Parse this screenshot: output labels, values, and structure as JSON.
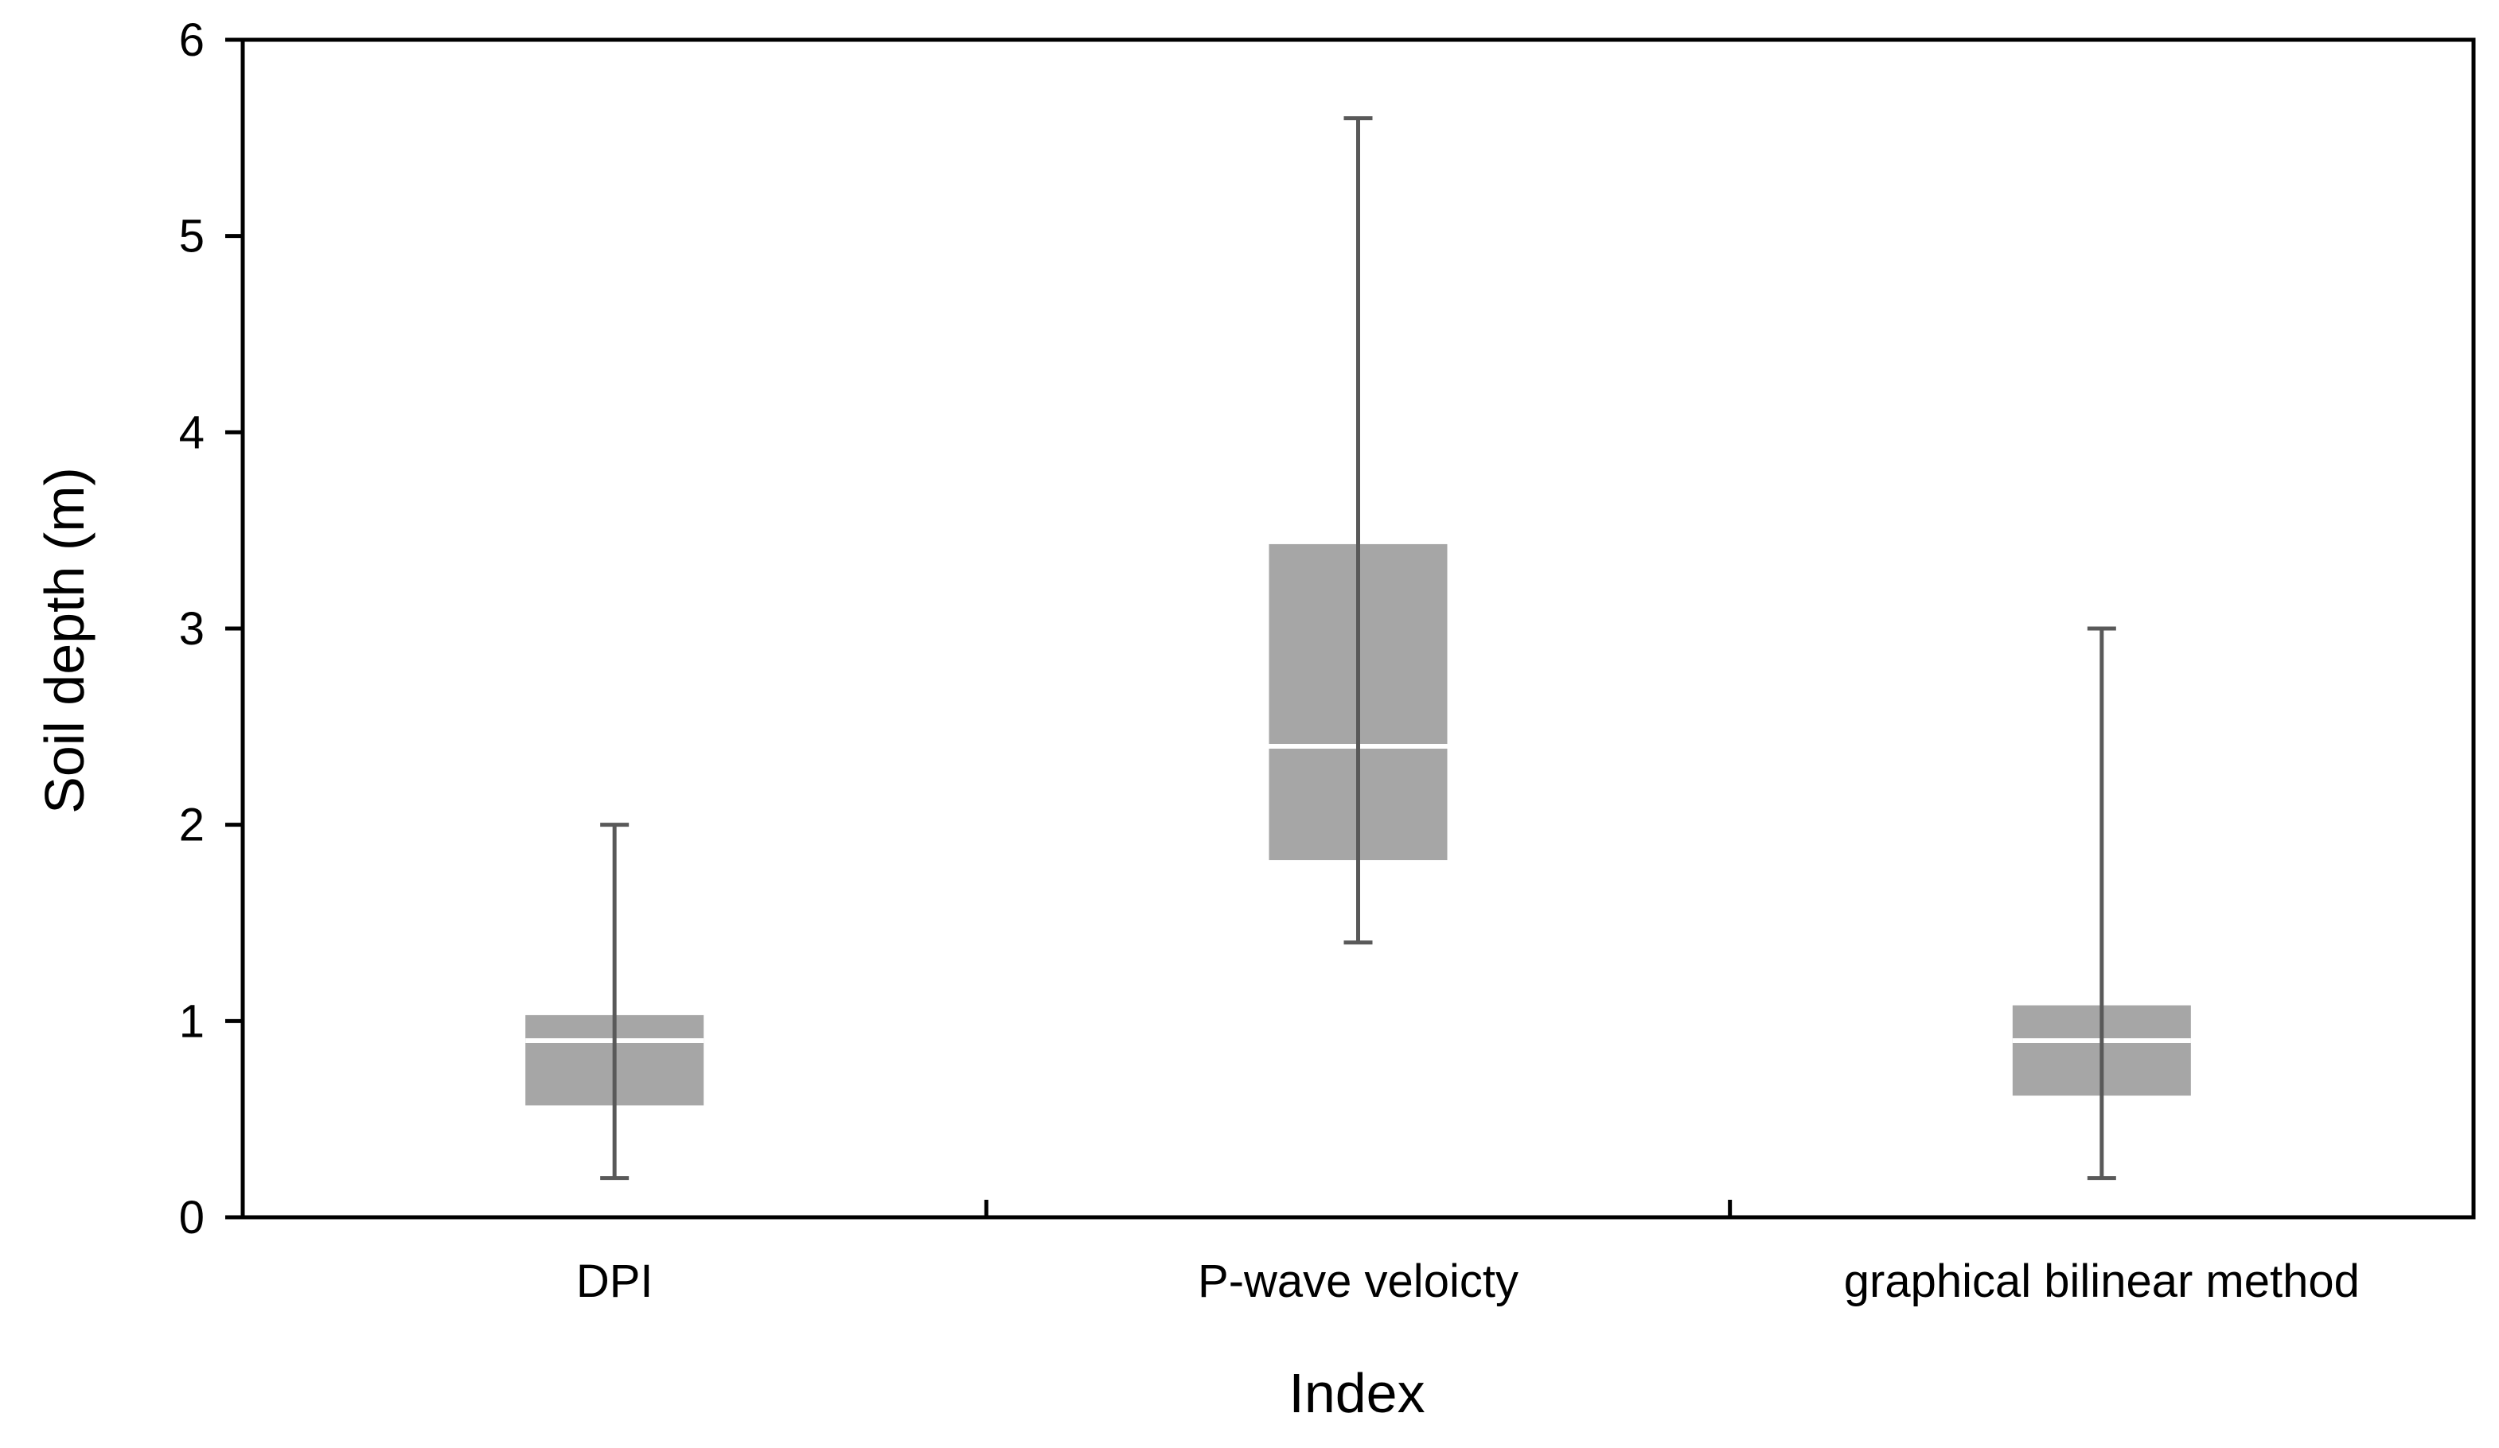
{
  "chart_data": {
    "type": "box",
    "title": "",
    "xlabel": "Index",
    "ylabel": "Soil depth (m)",
    "ylim": [
      0,
      6
    ],
    "yticks": [
      "0",
      "1",
      "2",
      "3",
      "4",
      "5",
      "6"
    ],
    "grid": false,
    "categories": [
      "DPI",
      "P-wave veloicty",
      "graphical bilinear method"
    ],
    "boxes": [
      {
        "min": 0.2,
        "q1": 0.57,
        "median": 0.9,
        "q3": 1.03,
        "max": 2.0
      },
      {
        "min": 1.4,
        "q1": 1.82,
        "median": 2.4,
        "q3": 3.43,
        "max": 5.6
      },
      {
        "min": 0.2,
        "q1": 0.62,
        "median": 0.9,
        "q3": 1.08,
        "max": 3.0
      }
    ],
    "colors": {
      "box": "#a6a6a6",
      "whisker": "#595959",
      "median": "#ffffff",
      "axis": "#000000"
    }
  }
}
